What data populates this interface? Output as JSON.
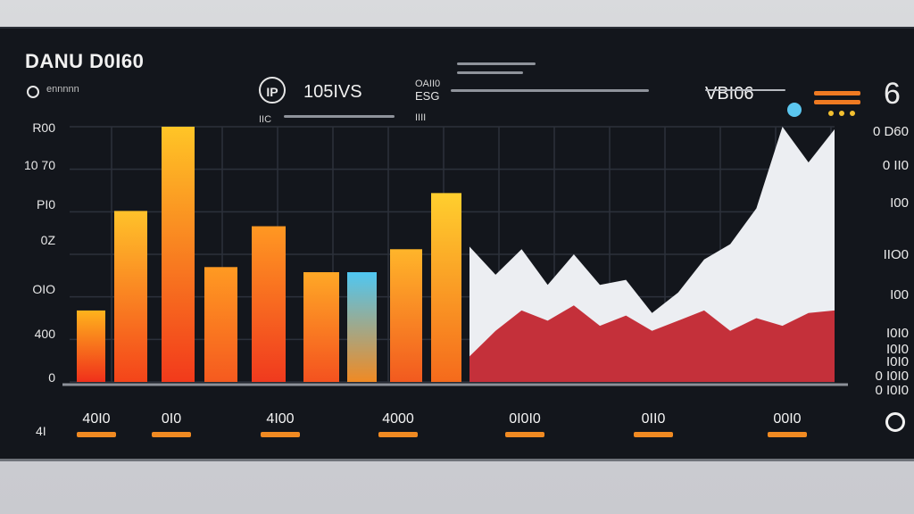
{
  "header": {
    "title": "DANU D0I60",
    "subtitle": "ennnnn",
    "logo_text": "IP",
    "stat_main": "105IVS",
    "stat_sub": "IIC",
    "mini_label_1": "OAII0",
    "mini_label_2": "ESG",
    "mini_label_3": "IIII",
    "right_code": "VBI06",
    "corner_glyph": "6",
    "accent_color": "#5bc6ef",
    "menu_color": "#ef7a22"
  },
  "icons": {
    "status": "status-dot-icon",
    "logo": "circle-logo-icon",
    "menu": "menu-lines-icon",
    "accent": "info-dot-icon",
    "settings": "settings-ring-icon"
  },
  "chart_data": {
    "type": "bar",
    "y_tick_labels": [
      "R00",
      "10 70",
      "PI0",
      "0Z",
      "OIO",
      "400",
      "0"
    ],
    "right_tick_labels": [
      "0 D60",
      "0 II0",
      "I00",
      "IIO0",
      "I00",
      "I0I0",
      "I0I0",
      "I0I0",
      "0 I0I0",
      "0 I0I0"
    ],
    "x_tick_labels": [
      "40I0",
      "0I0",
      "4I00",
      "4000",
      "0I0I0",
      "0II0",
      "00I0"
    ],
    "bottom_left_label": "4I",
    "bars": [
      {
        "value": 0.28,
        "top_color": "#ffb31c",
        "bottom_color": "#f0301b"
      },
      {
        "value": 0.67,
        "top_color": "#ffc22a",
        "bottom_color": "#f4441a"
      },
      {
        "value": 1.0,
        "top_color": "#ffc526",
        "bottom_color": "#f23a1b"
      },
      {
        "value": 0.45,
        "top_color": "#ff9a22",
        "bottom_color": "#f55a1f"
      },
      {
        "value": 0.61,
        "top_color": "#ff9822",
        "bottom_color": "#f03a1e"
      },
      {
        "value": 0.43,
        "top_color": "#ffa826",
        "bottom_color": "#f4521f"
      },
      {
        "value": 0.43,
        "top_color": "#4fc7f2",
        "bottom_color": "#f08a24"
      },
      {
        "value": 0.52,
        "top_color": "#ffb52a",
        "bottom_color": "#f25a1f"
      },
      {
        "value": 0.74,
        "top_color": "#ffcf2e",
        "bottom_color": "#f56a1c"
      }
    ],
    "area_upper": [
      0.53,
      0.42,
      0.52,
      0.38,
      0.5,
      0.38,
      0.4,
      0.27,
      0.35,
      0.48,
      0.54,
      0.68,
      1.0,
      0.86,
      0.99
    ],
    "area_lower": [
      0.1,
      0.2,
      0.28,
      0.24,
      0.3,
      0.22,
      0.26,
      0.2,
      0.24,
      0.28,
      0.2,
      0.25,
      0.22,
      0.27,
      0.28
    ],
    "colors": {
      "area_upper": "#eceef2",
      "area_lower": "#c4303a",
      "grid": "#2c313b"
    },
    "ylim": [
      0,
      1
    ],
    "grid": true,
    "legend": "none"
  }
}
